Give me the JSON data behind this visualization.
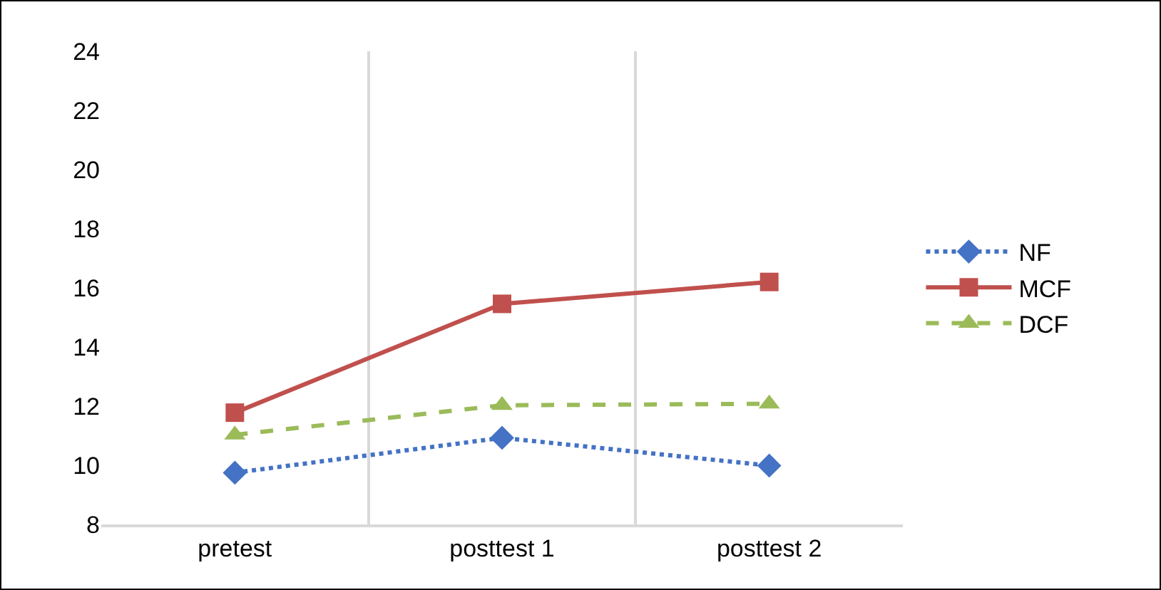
{
  "chart_data": {
    "type": "line",
    "categories": [
      "pretest",
      "posttest 1",
      "posttest 2"
    ],
    "series": [
      {
        "name": "NF",
        "color": "#4472c4",
        "values": [
          9.75,
          10.93,
          9.99
        ],
        "marker": "diamond",
        "line_style": "dotted"
      },
      {
        "name": "MCF",
        "color": "#c0504d",
        "values": [
          11.78,
          15.46,
          16.2
        ],
        "marker": "square",
        "line_style": "solid"
      },
      {
        "name": "DCF",
        "color": "#9bbb59",
        "values": [
          11.03,
          12.03,
          12.08
        ],
        "marker": "triangle",
        "line_style": "dashed"
      }
    ],
    "ylim": [
      8,
      24
    ],
    "yticks": [
      8,
      10,
      12,
      14,
      16,
      18,
      20,
      22,
      24
    ],
    "grid": "x",
    "legend": "right"
  }
}
